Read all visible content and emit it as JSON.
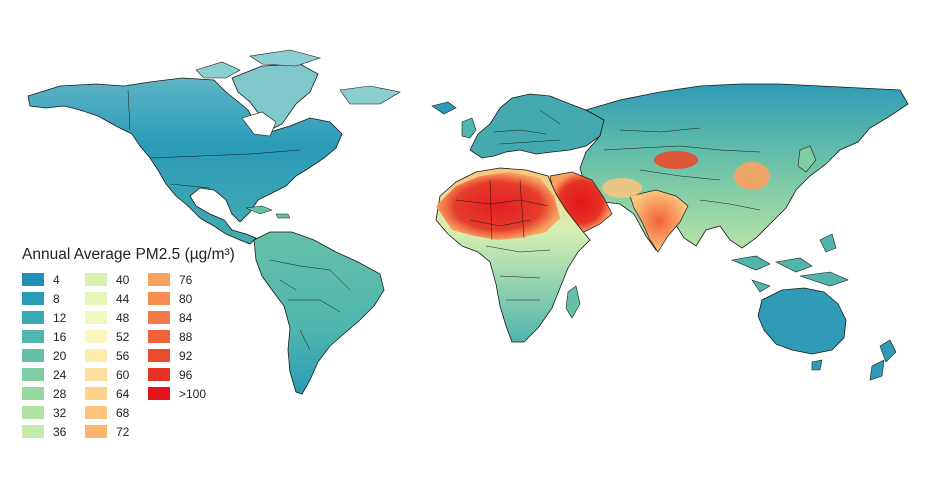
{
  "legend": {
    "title": "Annual Average PM2.5 (µg/m³)",
    "columns": [
      [
        {
          "label": "4",
          "color": "#1f8fb6"
        },
        {
          "label": "8",
          "color": "#2a9cb8"
        },
        {
          "label": "12",
          "color": "#3aa9b3"
        },
        {
          "label": "16",
          "color": "#4fb5ad"
        },
        {
          "label": "20",
          "color": "#66c0a8"
        },
        {
          "label": "24",
          "color": "#80cda2"
        },
        {
          "label": "28",
          "color": "#98d79f"
        },
        {
          "label": "32",
          "color": "#b1e1a3"
        },
        {
          "label": "36",
          "color": "#c7ebab"
        }
      ],
      [
        {
          "label": "40",
          "color": "#d8f0b2"
        },
        {
          "label": "44",
          "color": "#e6f5b8"
        },
        {
          "label": "48",
          "color": "#f2f8bd"
        },
        {
          "label": "52",
          "color": "#fbf6bc"
        },
        {
          "label": "56",
          "color": "#fdecad"
        },
        {
          "label": "60",
          "color": "#fde09d"
        },
        {
          "label": "64",
          "color": "#fdd18a"
        },
        {
          "label": "68",
          "color": "#fcc47c"
        },
        {
          "label": "72",
          "color": "#fbb56e"
        }
      ],
      [
        {
          "label": "76",
          "color": "#f9a260"
        },
        {
          "label": "80",
          "color": "#f78e52"
        },
        {
          "label": "84",
          "color": "#f47946"
        },
        {
          "label": "88",
          "color": "#f0623a"
        },
        {
          "label": "92",
          "color": "#eb4b2f"
        },
        {
          "label": "96",
          "color": "#e53425"
        },
        {
          "label": ">100",
          "color": "#e3141c"
        }
      ]
    ]
  },
  "map": {
    "ocean_color": "#ffffff",
    "border_color": "#1a1a1a",
    "regions": [
      {
        "name": "north-america",
        "color": "#2e9ab6"
      },
      {
        "name": "south-america",
        "color": "#4ab0ad"
      },
      {
        "name": "europe",
        "color": "#45aab0"
      },
      {
        "name": "africa",
        "color": "#62bba9"
      },
      {
        "name": "asia",
        "color": "#53b3ac"
      },
      {
        "name": "australia",
        "color": "#2f9bb6"
      },
      {
        "name": "greenland",
        "color": "#7fc7c9"
      }
    ],
    "hotspots": [
      {
        "name": "sahara-hotspot",
        "color": "#e3141c"
      },
      {
        "name": "arabia-hotspot",
        "color": "#e3141c"
      },
      {
        "name": "india-hotspot",
        "color": "#f0623a"
      },
      {
        "name": "taklamakan-hotspot",
        "color": "#eb4b2f"
      },
      {
        "name": "east-china-hotspot",
        "color": "#f9a260"
      },
      {
        "name": "sahel-band",
        "color": "#fcc47c"
      }
    ]
  }
}
